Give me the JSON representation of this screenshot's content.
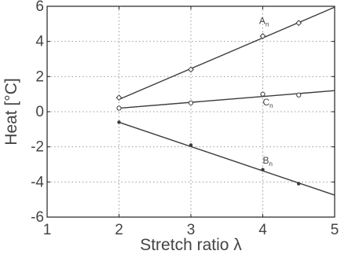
{
  "chart_data": {
    "type": "scatter",
    "xlabel": "Stretch ratio λ",
    "ylabel": "Heat [°C]",
    "xlim": [
      1,
      5
    ],
    "ylim": [
      -6,
      6
    ],
    "xticks": [
      1,
      2,
      3,
      4,
      5
    ],
    "yticks": [
      -6,
      -4,
      -2,
      0,
      2,
      4,
      6
    ],
    "xtick_labels": [
      "1",
      "2",
      "3",
      "4",
      "5"
    ],
    "ytick_labels": [
      "-6",
      "-4",
      "-2",
      "0",
      "2",
      "4",
      "6"
    ],
    "grid": true,
    "grid_style": "dotted",
    "legend": "none",
    "series": [
      {
        "name": "An",
        "label_main": "A",
        "label_sub": "n",
        "label_at": [
          3.95,
          5.0
        ],
        "marker": "diamond",
        "color": "#3c3c3c",
        "points": [
          {
            "x": 2,
            "y": 0.8
          },
          {
            "x": 3,
            "y": 2.4
          },
          {
            "x": 4,
            "y": 4.3
          },
          {
            "x": 4.5,
            "y": 5.05
          }
        ],
        "fit_line": {
          "x": [
            2,
            5
          ],
          "y": [
            0.7,
            5.95
          ]
        }
      },
      {
        "name": "Cn",
        "label_main": "C",
        "label_sub": "n",
        "label_at": [
          4.0,
          0.35
        ],
        "marker": "circle",
        "color": "#3c3c3c",
        "points": [
          {
            "x": 2,
            "y": 0.2
          },
          {
            "x": 3,
            "y": 0.5
          },
          {
            "x": 4,
            "y": 1.0
          },
          {
            "x": 4.5,
            "y": 0.95
          }
        ],
        "fit_line": {
          "x": [
            2,
            5
          ],
          "y": [
            0.2,
            1.2
          ]
        }
      },
      {
        "name": "Bn",
        "label_main": "B",
        "label_sub": "n",
        "label_at": [
          4.0,
          -2.95
        ],
        "marker": "dot",
        "color": "#3c3c3c",
        "points": [
          {
            "x": 2,
            "y": -0.6
          },
          {
            "x": 3,
            "y": -1.9
          },
          {
            "x": 4,
            "y": -3.3
          },
          {
            "x": 4.5,
            "y": -4.1
          }
        ],
        "fit_line": {
          "x": [
            2,
            5
          ],
          "y": [
            -0.6,
            -4.75
          ]
        }
      }
    ]
  }
}
